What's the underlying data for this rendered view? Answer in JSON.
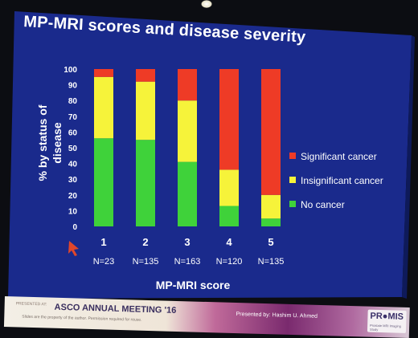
{
  "slide": {
    "title": "MP-MRI scores and disease severity",
    "background_color": "#1a2a8c"
  },
  "chart_data": {
    "type": "bar",
    "stacked": true,
    "title": "MP-MRI scores and disease severity",
    "xlabel": "MP-MRI score",
    "ylabel": "% by status of disease",
    "ylim": [
      0,
      100
    ],
    "yticks": [
      "0",
      "10",
      "20",
      "30",
      "40",
      "50",
      "60",
      "70",
      "80",
      "90",
      "100"
    ],
    "categories": [
      "1",
      "2",
      "3",
      "4",
      "5"
    ],
    "category_sublabels": [
      "N=23",
      "N=135",
      "N=163",
      "N=120",
      "N=135"
    ],
    "series": [
      {
        "name": "No cancer",
        "color": "#3fd23a",
        "values": [
          56,
          55,
          41,
          13,
          5
        ]
      },
      {
        "name": "Insignificant cancer",
        "color": "#f6f33a",
        "values": [
          39,
          37,
          39,
          23,
          15
        ]
      },
      {
        "name": "Significant cancer",
        "color": "#ee3b26",
        "values": [
          5,
          8,
          20,
          64,
          80
        ]
      }
    ],
    "legend_position": "right",
    "legend_order": [
      "Significant cancer",
      "Insignificant cancer",
      "No cancer"
    ]
  },
  "footer": {
    "org_text": "PRESENTED AT:",
    "meeting": "ASCO ANNUAL MEETING '16",
    "sub_text": "Slides are the property of the author. Permission required for reuse.",
    "presented_by": "Presented by:  Hashim U. Ahmed",
    "logo": "PR●MIS",
    "logo_sub": "Prostate MRI Imaging Study"
  }
}
